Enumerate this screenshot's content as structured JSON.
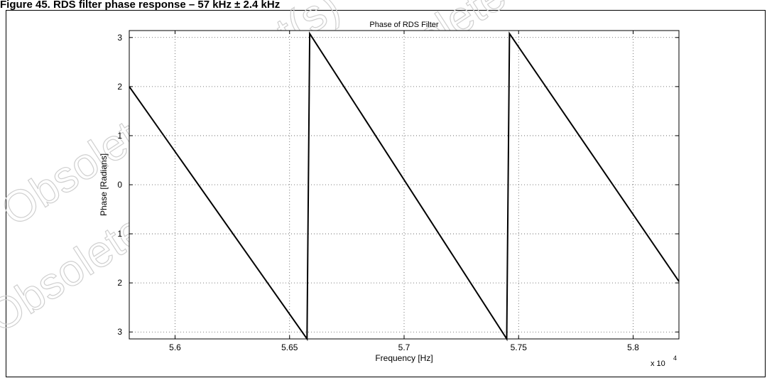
{
  "heading": "Figure 45. RDS filter phase response – 57 kHz ± 2.4 kHz",
  "watermark": [
    "Obsolete Product(s) - Obsolete Product(s)",
    "Obsolete Product(s) - Obsolete Product(s)"
  ],
  "chart_data": {
    "type": "line",
    "title": "Phase of RDS Filter",
    "xlabel": "Frequency [Hz]",
    "ylabel": "Phase [Radians]",
    "x_multiplier_label": "x 10",
    "x_multiplier_exp": "4",
    "xlim": [
      55800,
      58200
    ],
    "ylim": [
      -3.14159,
      3.14159
    ],
    "xticks": [
      56000,
      56500,
      57000,
      57500,
      58000
    ],
    "xtick_labels": [
      "5.6",
      "5.65",
      "5.7",
      "5.75",
      "5.8"
    ],
    "yticks": [
      3,
      2,
      1,
      0,
      -1,
      -2,
      -3
    ],
    "ytick_labels": [
      "3",
      "2",
      "1",
      "0",
      "1",
      "2",
      "3"
    ],
    "grid": true,
    "line_color": "#000000",
    "series": [
      {
        "x": [
          55800,
          56576,
          56576,
          56588,
          57448,
          57448,
          57460,
          58200
        ],
        "y": [
          2.0,
          -3.14,
          -3.14,
          3.08,
          -3.14,
          -3.14,
          3.08,
          -1.97
        ]
      }
    ]
  }
}
